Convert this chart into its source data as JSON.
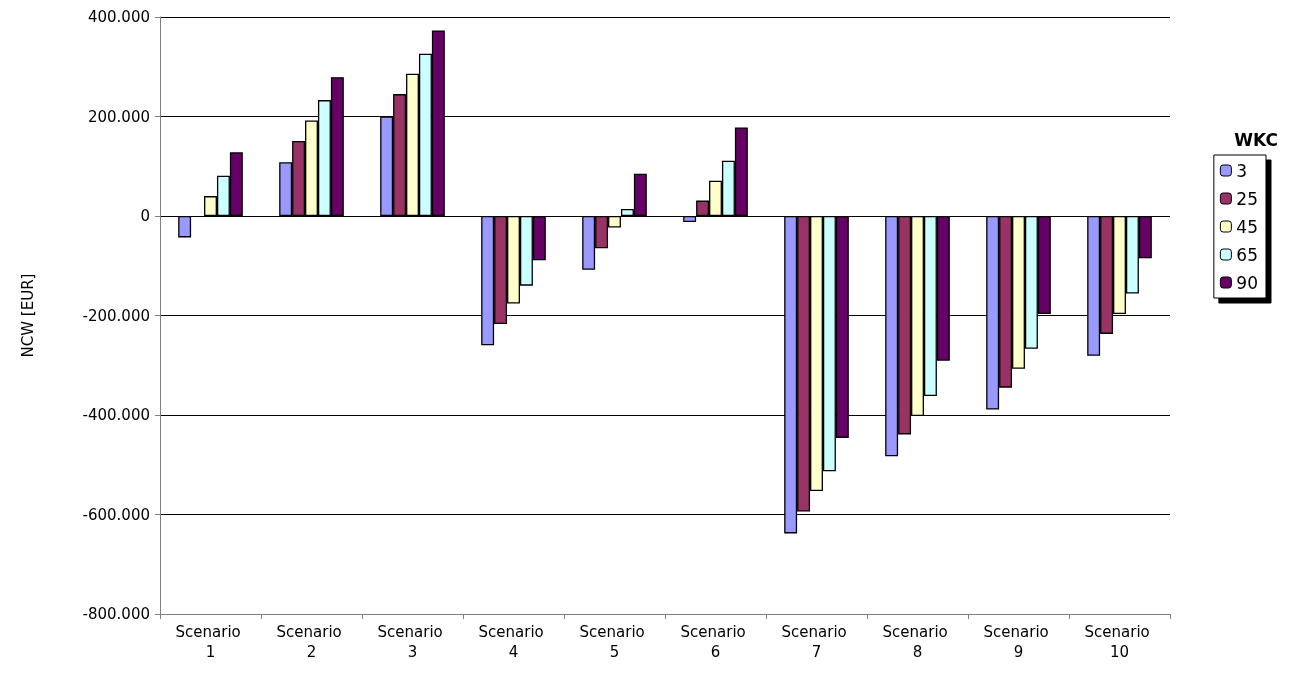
{
  "chart_data": {
    "type": "bar",
    "ylabel": "NCW [EUR]",
    "legend_title": "WKC",
    "legend": "right",
    "grid": "y",
    "categories": [
      "Scenario 1",
      "Scenario 2",
      "Scenario 3",
      "Scenario 4",
      "Scenario 5",
      "Scenario 6",
      "Scenario 7",
      "Scenario 8",
      "Scenario 9",
      "Scenario 10"
    ],
    "ylim": [
      -800000,
      400000
    ],
    "yticks": [
      {
        "value": -800000,
        "label": "-800.000"
      },
      {
        "value": -600000,
        "label": "-600.000"
      },
      {
        "value": -400000,
        "label": "-400.000"
      },
      {
        "value": -200000,
        "label": "-200.000"
      },
      {
        "value": 0,
        "label": "0"
      },
      {
        "value": 200000,
        "label": "200.000"
      },
      {
        "value": 400000,
        "label": "400.000"
      }
    ],
    "series": [
      {
        "name": "3",
        "color": "#9999ff",
        "values": [
          -43000,
          108000,
          200000,
          -260000,
          -108000,
          -12000,
          -638000,
          -483000,
          -389000,
          -281000
        ]
      },
      {
        "name": "25",
        "color": "#993366",
        "values": [
          null,
          151000,
          245000,
          -217000,
          -65000,
          31000,
          -594000,
          -439000,
          -345000,
          -237000
        ]
      },
      {
        "name": "45",
        "color": "#ffffcc",
        "values": [
          40000,
          192000,
          286000,
          -176000,
          -23000,
          71000,
          -553000,
          -402000,
          -307000,
          -197000
        ]
      },
      {
        "name": "65",
        "color": "#ccffff",
        "values": [
          81000,
          233000,
          326000,
          -140000,
          14000,
          111000,
          -513000,
          -362000,
          -267000,
          -156000
        ]
      },
      {
        "name": "90",
        "color": "#660066",
        "values": [
          128000,
          279000,
          373000,
          -89000,
          85000,
          178000,
          -446000,
          -291000,
          -197000,
          -85000
        ]
      }
    ]
  }
}
